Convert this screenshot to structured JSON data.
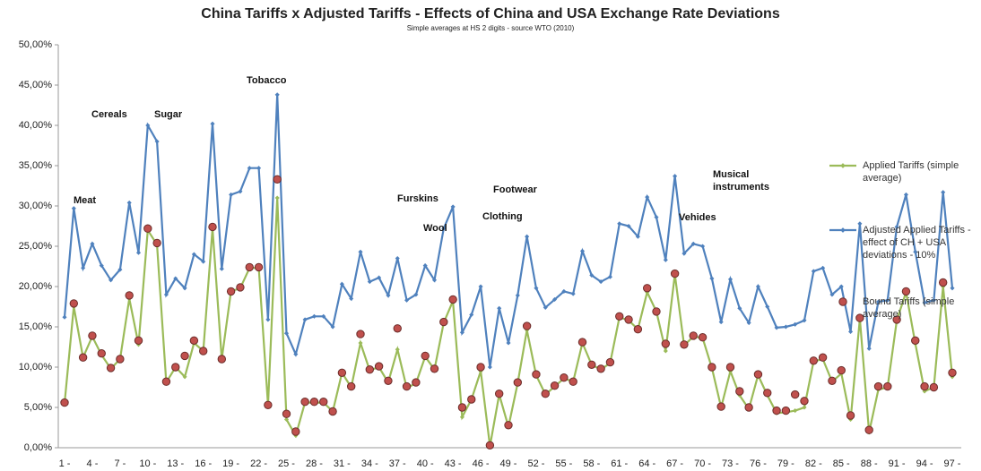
{
  "chart_data": {
    "type": "line",
    "title": "China Tariffs x Adjusted Tariffs - Effects of China and USA Exchange Rate Deviations",
    "subtitle": "Simple averages at HS 2 digits - source WTO (2010)",
    "categories": [
      "1 -",
      null,
      null,
      "4 -",
      null,
      null,
      "7 -",
      null,
      null,
      "10 -",
      null,
      null,
      "13 -",
      null,
      null,
      "16 -",
      null,
      null,
      "19 -",
      null,
      null,
      "22 -",
      null,
      null,
      "25 -",
      null,
      null,
      "28 -",
      null,
      null,
      "31 -",
      null,
      null,
      "34 -",
      null,
      null,
      "37 -",
      null,
      null,
      "40 -",
      null,
      null,
      "43 -",
      null,
      null,
      "46 -",
      null,
      null,
      "49 -",
      null,
      null,
      "52 -",
      null,
      null,
      "55 -",
      null,
      null,
      "58 -",
      null,
      null,
      "61 -",
      null,
      null,
      "64 -",
      null,
      null,
      "67 -",
      null,
      null,
      "70 -",
      null,
      null,
      "73 -",
      null,
      null,
      "76 -",
      null,
      null,
      "79 -",
      null,
      null,
      "82 -",
      null,
      null,
      "85 -",
      null,
      null,
      "88 -",
      null,
      null,
      "91 -",
      null,
      null,
      "94 -",
      null,
      null,
      "97 -"
    ],
    "series": [
      {
        "name": "Applied Tariffs (simple average)",
        "color": "#9bbb59",
        "style": "line",
        "values": [
          5.5,
          17.5,
          11.2,
          13.8,
          11.5,
          9.8,
          11.0,
          18.5,
          12.8,
          27.0,
          25.2,
          8.1,
          10.0,
          8.8,
          13.0,
          12.0,
          27.2,
          11.0,
          19.4,
          19.8,
          22.3,
          22.3,
          5.3,
          31.0,
          3.5,
          1.5,
          5.6,
          5.6,
          5.6,
          4.5,
          9.3,
          7.5,
          13.0,
          9.6,
          10.0,
          8.1,
          12.2,
          7.4,
          8.0,
          11.3,
          9.7,
          15.5,
          18.2,
          3.8,
          6.0,
          9.5,
          0.2,
          6.6,
          2.6,
          8.0,
          14.6,
          9.0,
          6.6,
          7.6,
          8.6,
          8.2,
          13.0,
          10.3,
          9.7,
          10.5,
          16.2,
          15.8,
          14.7,
          19.3,
          16.9,
          12.0,
          21.5,
          12.7,
          13.8,
          13.6,
          9.9,
          5.0,
          9.5,
          6.5,
          4.8,
          9.0,
          6.5,
          4.3,
          4.4,
          4.6,
          5.0,
          10.7,
          11.0,
          8.2,
          9.2,
          3.5,
          16.0,
          1.9,
          7.2,
          7.5,
          15.8,
          19.3,
          12.9,
          7.0,
          7.5,
          20.0,
          8.8
        ]
      },
      {
        "name": "Adjusted Applied Tariffs - effect of CH + USA deviations - 10%",
        "color": "#4f81bd",
        "style": "line",
        "values": [
          16.2,
          29.7,
          22.3,
          25.3,
          22.6,
          20.8,
          22.1,
          30.4,
          24.2,
          40.0,
          38.0,
          19.0,
          21.0,
          19.8,
          24.0,
          23.1,
          40.2,
          22.2,
          31.4,
          31.8,
          34.7,
          34.7,
          15.9,
          43.8,
          14.2,
          11.6,
          15.9,
          16.3,
          16.3,
          15.0,
          20.3,
          18.5,
          24.3,
          20.6,
          21.1,
          18.9,
          23.5,
          18.3,
          19.0,
          22.6,
          20.8,
          27.2,
          29.9,
          14.3,
          16.5,
          20.0,
          10.0,
          17.3,
          13.0,
          18.9,
          26.2,
          19.8,
          17.4,
          18.4,
          19.4,
          19.1,
          24.4,
          21.4,
          20.6,
          21.2,
          27.8,
          27.5,
          26.2,
          31.1,
          28.6,
          23.3,
          33.7,
          24.1,
          25.3,
          25.0,
          21.0,
          15.6,
          20.9,
          17.3,
          15.5,
          20.0,
          17.5,
          14.9,
          15.0,
          15.3,
          15.8,
          21.9,
          22.3,
          19.0,
          20.0,
          14.4,
          27.8,
          12.3,
          18.1,
          18.3,
          27.4,
          31.4,
          24.3,
          18.0,
          18.3,
          31.7,
          19.8
        ]
      },
      {
        "name": "Bound Tariffs (simple average)",
        "color": "#c0504d",
        "style": "markers",
        "values": [
          5.6,
          17.9,
          11.2,
          13.9,
          11.7,
          9.9,
          11.0,
          18.9,
          13.3,
          27.2,
          25.4,
          8.2,
          10.0,
          11.4,
          13.3,
          12.0,
          27.4,
          11.0,
          19.4,
          19.9,
          22.4,
          22.4,
          5.3,
          33.3,
          4.2,
          2.0,
          5.7,
          5.7,
          5.7,
          4.5,
          9.3,
          7.6,
          14.1,
          9.7,
          10.1,
          8.3,
          14.8,
          7.6,
          8.1,
          11.4,
          9.8,
          15.6,
          18.4,
          5.0,
          6.0,
          10.0,
          0.3,
          6.7,
          2.8,
          8.1,
          15.1,
          9.1,
          6.7,
          7.7,
          8.7,
          8.2,
          13.1,
          10.3,
          9.8,
          10.6,
          16.3,
          15.9,
          14.7,
          19.8,
          16.9,
          12.9,
          21.6,
          12.8,
          13.9,
          13.7,
          10.0,
          5.1,
          10.0,
          7.0,
          5.0,
          9.1,
          6.8,
          4.6,
          4.6,
          6.6,
          5.8,
          10.8,
          11.2,
          8.3,
          9.6,
          4.0,
          16.1,
          2.2,
          7.6,
          7.6,
          15.9,
          19.4,
          13.3,
          7.6,
          7.5,
          20.5,
          9.3
        ]
      }
    ],
    "annotations": [
      "Meat",
      "Cereals",
      "Sugar",
      "Tobacco",
      "Furskins",
      "Wool",
      "Footwear",
      "Clothing",
      "Vehides",
      "Musical instruments"
    ],
    "ylim": [
      0,
      50
    ],
    "yticks": [
      {
        "value": 0,
        "label": "0,00%"
      },
      {
        "value": 5,
        "label": "5,00%"
      },
      {
        "value": 10,
        "label": "10,00%"
      },
      {
        "value": 15,
        "label": "15,00%"
      },
      {
        "value": 20,
        "label": "20,00%"
      },
      {
        "value": 25,
        "label": "25,00%"
      },
      {
        "value": 30,
        "label": "30,00%"
      },
      {
        "value": 35,
        "label": "35,00%"
      },
      {
        "value": 40,
        "label": "40,00%"
      },
      {
        "value": 45,
        "label": "45,00%"
      },
      {
        "value": 50,
        "label": "50,00%"
      }
    ],
    "grid": false,
    "legend": "right"
  }
}
